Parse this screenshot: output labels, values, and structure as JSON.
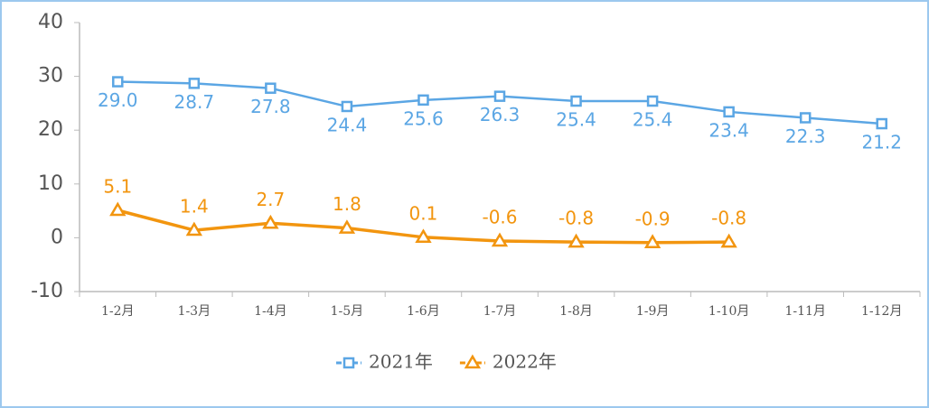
{
  "chart_data": {
    "type": "line",
    "categories": [
      "1-2月",
      "1-3月",
      "1-4月",
      "1-5月",
      "1-6月",
      "1-7月",
      "1-8月",
      "1-9月",
      "1-10月",
      "1-11月",
      "1-12月"
    ],
    "series": [
      {
        "name": "2021年",
        "color": "#5ba6e4",
        "marker": "square",
        "values": [
          29.0,
          28.7,
          27.8,
          24.4,
          25.6,
          26.3,
          25.4,
          25.4,
          23.4,
          22.3,
          21.2
        ],
        "value_labels": [
          "29.0",
          "28.7",
          "27.8",
          "24.4",
          "25.6",
          "26.3",
          "25.4",
          "25.4",
          "23.4",
          "22.3",
          "21.2"
        ]
      },
      {
        "name": "2022年",
        "color": "#f2950f",
        "marker": "triangle",
        "values": [
          5.1,
          1.4,
          2.7,
          1.8,
          0.1,
          -0.6,
          -0.8,
          -0.9,
          -0.8,
          null,
          null
        ],
        "value_labels": [
          "5.1",
          "1.4",
          "2.7",
          "1.8",
          "0.1",
          "-0.6",
          "-0.8",
          "-0.9",
          "-0.8",
          null,
          null
        ]
      }
    ],
    "ylim": [
      -10,
      40
    ],
    "yticks": [
      -10,
      0,
      10,
      20,
      30,
      40
    ],
    "grid": false,
    "legend": "bottom"
  }
}
